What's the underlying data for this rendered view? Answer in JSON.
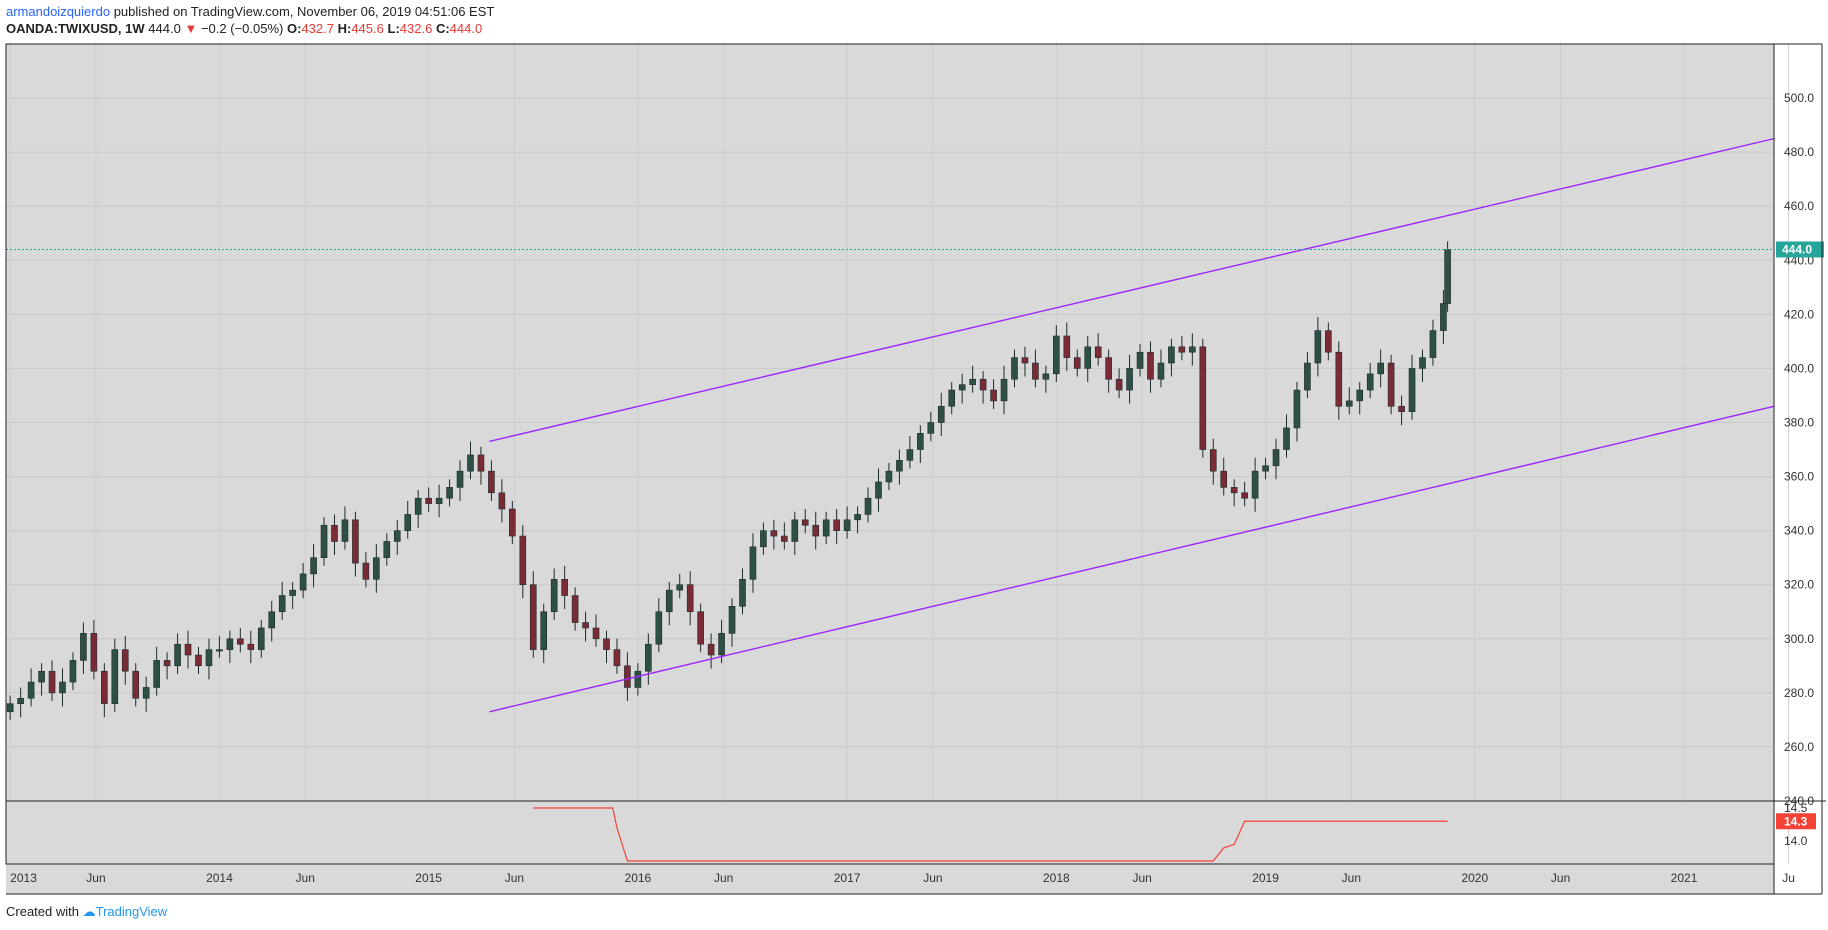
{
  "header": {
    "author": "armandoizquierdo",
    "published_text": "published on TradingView.com, November 06, 2019 04:51:06 EST",
    "symbol": "OANDA:TWIXUSD, 1W",
    "last": "444.0",
    "change_arrow": "▼",
    "change": "−0.2 (−0.05%)",
    "o_label": "O:",
    "o_value": "432.7",
    "h_label": "H:",
    "h_value": "445.6",
    "l_label": "L:",
    "l_value": "432.6",
    "c_label": "C:",
    "c_value": "444.0"
  },
  "footer": {
    "created_with": "Created with",
    "brand": "TradingView"
  },
  "colors": {
    "background": "#d9d9d9",
    "up": "#2e4f44",
    "down": "#7a2b35",
    "channel": "#9c27ff",
    "last_price": "#26a69a",
    "indicator": "#f44336"
  },
  "chart_data": {
    "type": "candlestick",
    "x_axis_labels": [
      "2013",
      "Jun",
      "2014",
      "Jun",
      "2015",
      "Jun",
      "2016",
      "Jun",
      "2017",
      "Jun",
      "2018",
      "Jun",
      "2019",
      "Jun",
      "2020",
      "Jun",
      "2021",
      "Ju"
    ],
    "y_axis_labels": [
      "500.0",
      "480.0",
      "460.0",
      "440.0",
      "420.0",
      "400.0",
      "380.0",
      "360.0",
      "340.0",
      "320.0",
      "300.0",
      "280.0",
      "260.0",
      "240.0"
    ],
    "ylim": [
      240,
      520
    ],
    "xlim": [
      2012.98,
      2021.43
    ],
    "last_price_label": "444.0",
    "close_series": [
      [
        2013.0,
        276
      ],
      [
        2013.05,
        278
      ],
      [
        2013.1,
        284
      ],
      [
        2013.15,
        288
      ],
      [
        2013.2,
        280
      ],
      [
        2013.25,
        284
      ],
      [
        2013.3,
        292
      ],
      [
        2013.35,
        302
      ],
      [
        2013.4,
        288
      ],
      [
        2013.45,
        276
      ],
      [
        2013.5,
        296
      ],
      [
        2013.55,
        288
      ],
      [
        2013.6,
        278
      ],
      [
        2013.65,
        282
      ],
      [
        2013.7,
        292
      ],
      [
        2013.75,
        290
      ],
      [
        2013.8,
        298
      ],
      [
        2013.85,
        294
      ],
      [
        2013.9,
        290
      ],
      [
        2013.95,
        296
      ],
      [
        2014.0,
        296
      ],
      [
        2014.05,
        300
      ],
      [
        2014.1,
        298
      ],
      [
        2014.15,
        296
      ],
      [
        2014.2,
        304
      ],
      [
        2014.25,
        310
      ],
      [
        2014.3,
        316
      ],
      [
        2014.35,
        318
      ],
      [
        2014.4,
        324
      ],
      [
        2014.45,
        330
      ],
      [
        2014.5,
        342
      ],
      [
        2014.55,
        336
      ],
      [
        2014.6,
        344
      ],
      [
        2014.65,
        328
      ],
      [
        2014.7,
        322
      ],
      [
        2014.75,
        330
      ],
      [
        2014.8,
        336
      ],
      [
        2014.85,
        340
      ],
      [
        2014.9,
        346
      ],
      [
        2014.95,
        352
      ],
      [
        2015.0,
        350
      ],
      [
        2015.05,
        352
      ],
      [
        2015.1,
        356
      ],
      [
        2015.15,
        362
      ],
      [
        2015.2,
        368
      ],
      [
        2015.25,
        362
      ],
      [
        2015.3,
        354
      ],
      [
        2015.35,
        348
      ],
      [
        2015.4,
        338
      ],
      [
        2015.45,
        320
      ],
      [
        2015.5,
        296
      ],
      [
        2015.55,
        310
      ],
      [
        2015.6,
        322
      ],
      [
        2015.65,
        316
      ],
      [
        2015.7,
        306
      ],
      [
        2015.75,
        304
      ],
      [
        2015.8,
        300
      ],
      [
        2015.85,
        296
      ],
      [
        2015.9,
        290
      ],
      [
        2015.95,
        282
      ],
      [
        2016.0,
        288
      ],
      [
        2016.05,
        298
      ],
      [
        2016.1,
        310
      ],
      [
        2016.15,
        318
      ],
      [
        2016.2,
        320
      ],
      [
        2016.25,
        310
      ],
      [
        2016.3,
        298
      ],
      [
        2016.35,
        294
      ],
      [
        2016.4,
        302
      ],
      [
        2016.45,
        312
      ],
      [
        2016.5,
        322
      ],
      [
        2016.55,
        334
      ],
      [
        2016.6,
        340
      ],
      [
        2016.65,
        338
      ],
      [
        2016.7,
        336
      ],
      [
        2016.75,
        344
      ],
      [
        2016.8,
        342
      ],
      [
        2016.85,
        338
      ],
      [
        2016.9,
        344
      ],
      [
        2016.95,
        340
      ],
      [
        2017.0,
        344
      ],
      [
        2017.05,
        346
      ],
      [
        2017.1,
        352
      ],
      [
        2017.15,
        358
      ],
      [
        2017.2,
        362
      ],
      [
        2017.25,
        366
      ],
      [
        2017.3,
        370
      ],
      [
        2017.35,
        376
      ],
      [
        2017.4,
        380
      ],
      [
        2017.45,
        386
      ],
      [
        2017.5,
        392
      ],
      [
        2017.55,
        394
      ],
      [
        2017.6,
        396
      ],
      [
        2017.65,
        392
      ],
      [
        2017.7,
        388
      ],
      [
        2017.75,
        396
      ],
      [
        2017.8,
        404
      ],
      [
        2017.85,
        402
      ],
      [
        2017.9,
        396
      ],
      [
        2017.95,
        398
      ],
      [
        2018.0,
        412
      ],
      [
        2018.05,
        404
      ],
      [
        2018.1,
        400
      ],
      [
        2018.15,
        408
      ],
      [
        2018.2,
        404
      ],
      [
        2018.25,
        396
      ],
      [
        2018.3,
        392
      ],
      [
        2018.35,
        400
      ],
      [
        2018.4,
        406
      ],
      [
        2018.45,
        396
      ],
      [
        2018.5,
        402
      ],
      [
        2018.55,
        408
      ],
      [
        2018.6,
        406
      ],
      [
        2018.65,
        408
      ],
      [
        2018.7,
        370
      ],
      [
        2018.75,
        362
      ],
      [
        2018.8,
        356
      ],
      [
        2018.85,
        354
      ],
      [
        2018.9,
        352
      ],
      [
        2018.95,
        362
      ],
      [
        2019.0,
        364
      ],
      [
        2019.05,
        370
      ],
      [
        2019.1,
        378
      ],
      [
        2019.15,
        392
      ],
      [
        2019.2,
        402
      ],
      [
        2019.25,
        414
      ],
      [
        2019.3,
        406
      ],
      [
        2019.35,
        386
      ],
      [
        2019.4,
        388
      ],
      [
        2019.45,
        392
      ],
      [
        2019.5,
        398
      ],
      [
        2019.55,
        402
      ],
      [
        2019.6,
        386
      ],
      [
        2019.65,
        384
      ],
      [
        2019.7,
        400
      ],
      [
        2019.75,
        404
      ],
      [
        2019.8,
        414
      ],
      [
        2019.85,
        424
      ],
      [
        2019.87,
        444
      ]
    ],
    "channel": {
      "upper": [
        [
          2015.29,
          373
        ],
        [
          2021.43,
          485
        ]
      ],
      "lower": [
        [
          2015.29,
          273
        ],
        [
          2021.43,
          386
        ]
      ]
    },
    "indicator": {
      "y_axis_labels": [
        "14.5",
        "14.0"
      ],
      "last_label": "14.3",
      "series": [
        [
          2015.5,
          14.5
        ],
        [
          2015.88,
          14.5
        ],
        [
          2015.9,
          14.2
        ],
        [
          2015.95,
          13.7
        ],
        [
          2016.0,
          13.7
        ],
        [
          2018.75,
          13.7
        ],
        [
          2018.8,
          13.9
        ],
        [
          2018.85,
          13.95
        ],
        [
          2018.9,
          14.3
        ],
        [
          2019.87,
          14.3
        ]
      ]
    }
  }
}
